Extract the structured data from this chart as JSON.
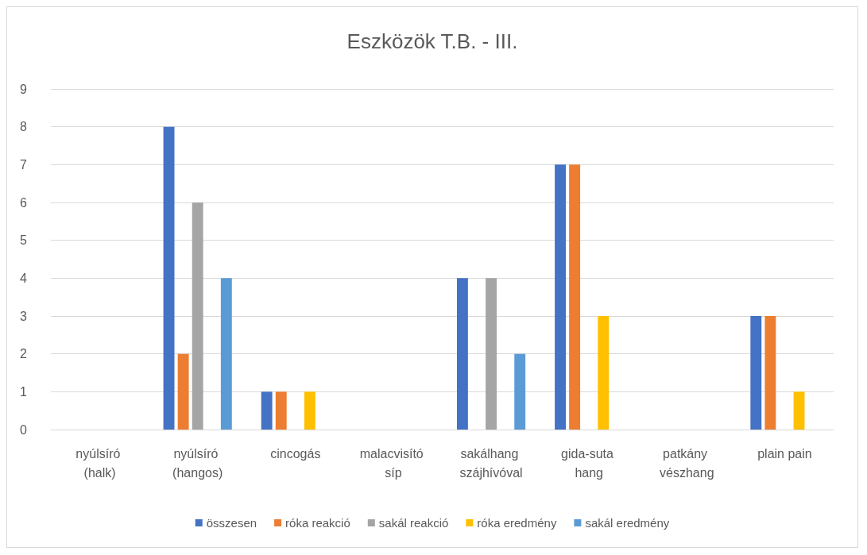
{
  "chart_data": {
    "type": "bar",
    "title": "Eszközök T.B. - III.",
    "categories": [
      "nyúlsíró (halk)",
      "nyúlsíró (hangos)",
      "cincogás",
      "malacvisító síp",
      "sakálhang szájhívóval",
      "gida-suta hang",
      "patkány vészhang",
      "plain pain"
    ],
    "series": [
      {
        "name": "összesen",
        "color": "#4472c4",
        "values": [
          0,
          8,
          1,
          0,
          4,
          7,
          0,
          3
        ]
      },
      {
        "name": "róka reakció",
        "color": "#ed7d31",
        "values": [
          0,
          2,
          1,
          0,
          0,
          7,
          0,
          3
        ]
      },
      {
        "name": "sakál reakció",
        "color": "#a5a5a5",
        "values": [
          0,
          6,
          0,
          0,
          4,
          0,
          0,
          0
        ]
      },
      {
        "name": "róka eredmény",
        "color": "#ffc000",
        "values": [
          0,
          0,
          1,
          0,
          0,
          3,
          0,
          1
        ]
      },
      {
        "name": "sakál eredmény",
        "color": "#5b9bd5",
        "values": [
          0,
          4,
          0,
          0,
          2,
          0,
          0,
          0
        ]
      }
    ],
    "ylim": [
      0,
      9
    ],
    "yticks": [
      0,
      1,
      2,
      3,
      4,
      5,
      6,
      7,
      8,
      9
    ],
    "grid": "y",
    "legend": "bottom"
  }
}
